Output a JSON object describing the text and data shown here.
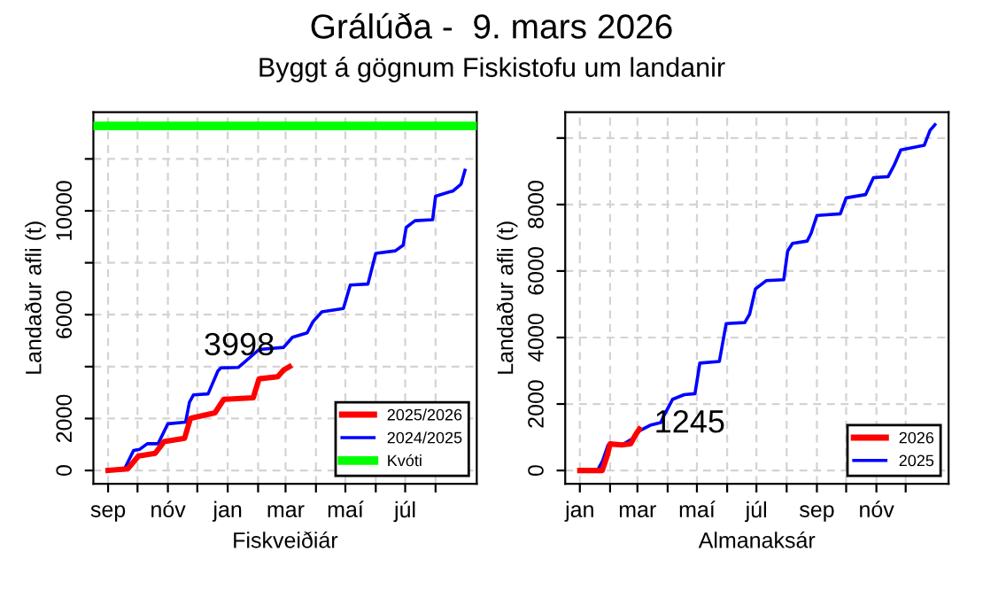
{
  "chart_data": [
    {
      "type": "line",
      "title": "Grálúða -  9. mars 2026",
      "subtitle": "Byggt á gögnum Fiskistofu um landanir",
      "xlabel": "Fiskveiðiár",
      "ylabel": "Landaður afli (t)",
      "xlim": [
        "2025-08-17",
        "2026-09-12"
      ],
      "ylim": [
        -513,
        13803
      ],
      "xticks": [
        {
          "value": "2025-09-01",
          "label": "sep"
        },
        {
          "value": "2025-10-01",
          "label": null
        },
        {
          "value": "2025-11-01",
          "label": "nóv"
        },
        {
          "value": "2025-12-01",
          "label": null
        },
        {
          "value": "2026-01-01",
          "label": "jan"
        },
        {
          "value": "2026-02-01",
          "label": null
        },
        {
          "value": "2026-03-01",
          "label": "mar"
        },
        {
          "value": "2026-04-01",
          "label": null
        },
        {
          "value": "2026-05-01",
          "label": "maí"
        },
        {
          "value": "2026-06-01",
          "label": null
        },
        {
          "value": "2026-07-01",
          "label": "júl"
        },
        {
          "value": "2026-08-01",
          "label": null
        }
      ],
      "yticks": [
        0,
        2000,
        {
          "value": 4000,
          "label": null
        },
        6000,
        {
          "value": 8000,
          "label": null
        },
        10000,
        {
          "value": 12000,
          "label": null
        }
      ],
      "series": [
        {
          "name": "2025/2026",
          "color": "#ff0000",
          "x": [
            "2025-09-01",
            "2025-09-21",
            "2025-10-02",
            "2025-10-19",
            "2025-10-28",
            "2025-11-18",
            "2025-11-24",
            "2025-12-19",
            "2025-12-28",
            "2026-01-27",
            "2026-02-02",
            "2026-02-21",
            "2026-02-27",
            "2026-03-05"
          ],
          "values": [
            0,
            60,
            560,
            660,
            1110,
            1240,
            2010,
            2220,
            2740,
            2800,
            3530,
            3610,
            3870,
            3998
          ]
        },
        {
          "name": "2024/2025",
          "color": "#0000ff",
          "x": [
            "2025-09-01",
            "2025-09-18",
            "2025-09-27",
            "2025-10-03",
            "2025-10-11",
            "2025-10-22",
            "2025-11-01",
            "2025-11-19",
            "2025-11-23",
            "2025-11-27",
            "2025-12-12",
            "2025-12-22",
            "2025-12-25",
            "2026-01-12",
            "2026-02-02",
            "2026-02-27",
            "2026-03-08",
            "2026-03-23",
            "2026-03-29",
            "2026-04-07",
            "2026-04-29",
            "2026-05-06",
            "2026-05-24",
            "2026-06-01",
            "2026-06-21",
            "2026-06-29",
            "2026-07-02",
            "2026-07-11",
            "2026-07-29",
            "2026-08-01",
            "2026-08-19",
            "2026-08-27",
            "2026-08-31"
          ],
          "values": [
            0,
            80,
            770,
            810,
            1030,
            1030,
            1800,
            1860,
            2630,
            2910,
            2950,
            3830,
            3950,
            3970,
            4660,
            4740,
            5130,
            5300,
            5730,
            6110,
            6240,
            7140,
            7180,
            8360,
            8460,
            8680,
            9360,
            9620,
            9660,
            10560,
            10770,
            11030,
            11560
          ]
        }
      ],
      "ref_lines": [
        {
          "axis": "y",
          "value": 13270,
          "label": "Kvóti",
          "color": "#00ff00"
        }
      ],
      "annotations": [
        {
          "text": "3998",
          "x": "2026-03-05",
          "y": 3998
        }
      ],
      "grid": true,
      "legend": "bottom right"
    },
    {
      "type": "line",
      "xlabel": "Almanaksár",
      "ylabel": "Landaður afli (t)",
      "xlim": [
        "2024-12-17",
        "2026-01-14"
      ],
      "ylim": [
        -400,
        10780
      ],
      "xticks": [
        {
          "value": "2025-01-01",
          "label": "jan"
        },
        {
          "value": "2025-02-01",
          "label": null
        },
        {
          "value": "2025-03-01",
          "label": "mar"
        },
        {
          "value": "2025-04-01",
          "label": null
        },
        {
          "value": "2025-05-01",
          "label": "maí"
        },
        {
          "value": "2025-06-01",
          "label": null
        },
        {
          "value": "2025-07-01",
          "label": "júl"
        },
        {
          "value": "2025-08-01",
          "label": null
        },
        {
          "value": "2025-09-01",
          "label": "sep"
        },
        {
          "value": "2025-10-01",
          "label": null
        },
        {
          "value": "2025-11-01",
          "label": "nóv"
        },
        {
          "value": "2025-12-01",
          "label": null
        }
      ],
      "yticks": [
        0,
        2000,
        4000,
        6000,
        8000,
        {
          "value": 10000,
          "label": null
        }
      ],
      "series": [
        {
          "name": "2026",
          "color": "#ff0000",
          "x": [
            "2025-01-01",
            "2025-01-24",
            "2025-01-29",
            "2025-02-01",
            "2025-02-13",
            "2025-02-22",
            "2025-02-27",
            "2025-03-03"
          ],
          "values": [
            0,
            0,
            440,
            800,
            770,
            800,
            1070,
            1245
          ]
        },
        {
          "name": "2025",
          "color": "#0000ff",
          "x": [
            "2025-01-01",
            "2025-01-19",
            "2025-01-24",
            "2025-01-30",
            "2025-02-13",
            "2025-02-23",
            "2025-03-03",
            "2025-03-14",
            "2025-03-25",
            "2025-03-28",
            "2025-04-06",
            "2025-04-18",
            "2025-04-29",
            "2025-05-04",
            "2025-05-24",
            "2025-05-31",
            "2025-06-19",
            "2025-06-24",
            "2025-06-30",
            "2025-07-11",
            "2025-07-29",
            "2025-08-02",
            "2025-08-07",
            "2025-08-22",
            "2025-08-26",
            "2025-09-01",
            "2025-09-25",
            "2025-10-01",
            "2025-10-21",
            "2025-10-29",
            "2025-11-13",
            "2025-11-19",
            "2025-11-26",
            "2025-12-20",
            "2025-12-26",
            "2025-12-31"
          ],
          "values": [
            0,
            0,
            270,
            770,
            770,
            940,
            1190,
            1360,
            1440,
            1640,
            2140,
            2280,
            2310,
            3230,
            3280,
            4420,
            4450,
            4700,
            5460,
            5710,
            5740,
            6600,
            6830,
            6900,
            7130,
            7670,
            7720,
            8200,
            8300,
            8810,
            8840,
            9170,
            9640,
            9780,
            10230,
            10400
          ]
        }
      ],
      "annotations": [
        {
          "text": "1245",
          "x": "2025-03-03",
          "y": 1245
        }
      ],
      "grid": true,
      "legend": "bottom right"
    }
  ]
}
